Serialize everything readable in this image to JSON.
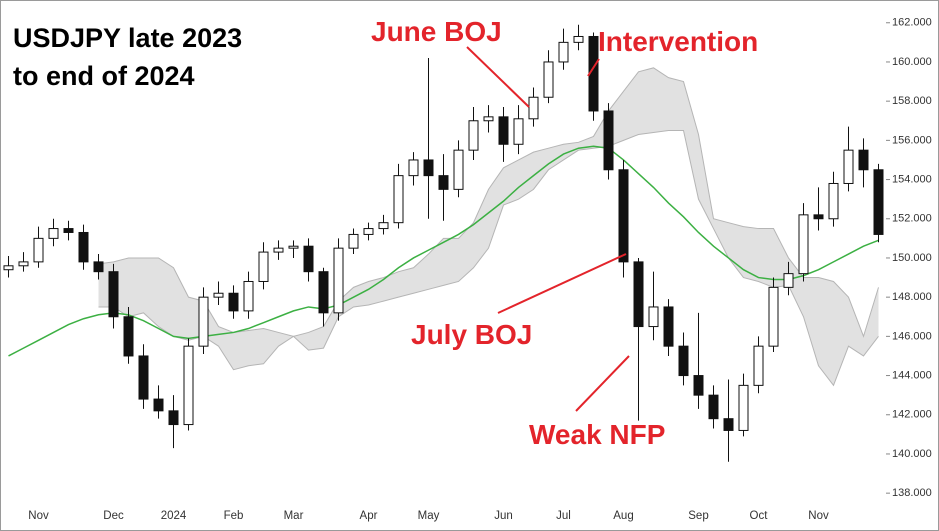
{
  "chart_data": {
    "type": "candlestick",
    "title": "USDJPY late 2023\nto end of 2024",
    "categories": [
      null,
      null,
      "Nov",
      null,
      null,
      null,
      null,
      "Dec",
      null,
      null,
      null,
      "2024",
      null,
      null,
      null,
      "Feb",
      null,
      null,
      null,
      "Mar",
      null,
      null,
      null,
      null,
      "Apr",
      null,
      null,
      null,
      "May",
      null,
      null,
      null,
      null,
      "Jun",
      null,
      null,
      null,
      "Jul",
      null,
      null,
      null,
      "Aug",
      null,
      null,
      null,
      null,
      "Sep",
      null,
      null,
      null,
      "Oct",
      null,
      null,
      null,
      "Nov",
      null,
      null,
      null,
      null
    ],
    "ohlc": {
      "open": [
        149.4,
        149.6,
        149.8,
        151.0,
        151.5,
        151.3,
        149.8,
        149.3,
        147.0,
        145.0,
        142.8,
        142.2,
        141.5,
        145.5,
        148.0,
        148.2,
        147.3,
        148.8,
        150.3,
        150.5,
        150.6,
        149.3,
        147.2,
        150.5,
        151.2,
        151.5,
        151.8,
        154.2,
        155.0,
        154.2,
        153.5,
        155.5,
        157.0,
        157.2,
        155.8,
        157.1,
        158.2,
        160.0,
        161.0,
        161.3,
        157.5,
        154.5,
        149.8,
        146.5,
        147.5,
        145.5,
        144.0,
        143.0,
        141.8,
        141.2,
        143.5,
        145.5,
        148.5,
        149.2,
        152.2,
        152.0,
        153.8,
        155.5,
        154.5
      ],
      "high": [
        150.1,
        150.3,
        151.6,
        152.0,
        151.9,
        151.7,
        150.2,
        149.7,
        147.5,
        145.6,
        143.5,
        143.0,
        145.9,
        148.5,
        148.8,
        148.6,
        149.3,
        150.8,
        150.9,
        150.9,
        151.0,
        149.5,
        151.0,
        151.5,
        151.8,
        152.2,
        154.8,
        155.4,
        160.2,
        155.3,
        156.0,
        157.7,
        157.8,
        157.7,
        157.8,
        158.7,
        160.6,
        161.7,
        161.9,
        161.5,
        157.9,
        155.0,
        150.0,
        149.3,
        147.9,
        146.2,
        147.2,
        143.5,
        143.8,
        144.1,
        146.0,
        149.0,
        149.8,
        152.8,
        153.6,
        154.4,
        156.7,
        156.1,
        154.8
      ],
      "low": [
        149.0,
        149.3,
        149.5,
        150.6,
        150.9,
        149.4,
        148.9,
        146.4,
        144.6,
        142.3,
        141.8,
        140.3,
        141.2,
        145.1,
        147.6,
        146.9,
        146.9,
        148.4,
        149.9,
        150.0,
        148.8,
        146.5,
        146.8,
        150.2,
        150.9,
        151.2,
        151.5,
        153.7,
        152.0,
        151.9,
        153.1,
        155.0,
        156.4,
        154.9,
        155.3,
        156.7,
        157.9,
        159.6,
        160.6,
        157.0,
        154.0,
        149.0,
        141.7,
        145.8,
        145.0,
        143.5,
        142.3,
        141.3,
        139.6,
        140.9,
        143.1,
        145.2,
        148.1,
        148.8,
        151.4,
        151.6,
        153.4,
        153.6,
        150.8
      ],
      "close": [
        149.6,
        149.8,
        151.0,
        151.5,
        151.3,
        149.8,
        149.3,
        147.0,
        145.0,
        142.8,
        142.2,
        141.5,
        145.5,
        148.0,
        148.2,
        147.3,
        148.8,
        150.3,
        150.5,
        150.6,
        149.3,
        147.2,
        150.5,
        151.2,
        151.5,
        151.8,
        154.2,
        155.0,
        154.2,
        153.5,
        155.5,
        157.0,
        157.2,
        155.8,
        157.1,
        158.2,
        160.0,
        161.0,
        161.3,
        157.5,
        154.5,
        149.8,
        146.5,
        147.5,
        145.5,
        144.0,
        143.0,
        141.8,
        141.2,
        143.5,
        145.5,
        148.5,
        149.2,
        152.2,
        152.0,
        153.8,
        155.5,
        154.5,
        151.2
      ],
      "up_color": "#ffffff",
      "down_color": "#111111",
      "edge_color": "#111111"
    },
    "ma": {
      "color": "#3cb043",
      "values": [
        145.0,
        145.4,
        145.8,
        146.2,
        146.6,
        146.9,
        147.1,
        147.2,
        147.1,
        146.8,
        146.4,
        146.0,
        145.9,
        146.0,
        146.1,
        146.2,
        146.4,
        146.7,
        147.0,
        147.3,
        147.5,
        147.4,
        147.6,
        148.0,
        148.4,
        148.9,
        149.5,
        150.0,
        150.4,
        150.8,
        151.2,
        151.7,
        152.3,
        152.9,
        153.6,
        154.2,
        154.8,
        155.3,
        155.6,
        155.7,
        155.6,
        155.0,
        154.3,
        153.6,
        152.8,
        152.1,
        151.3,
        150.6,
        150.0,
        149.4,
        149.0,
        148.9,
        148.9,
        149.1,
        149.4,
        149.8,
        150.2,
        150.6,
        150.9
      ]
    },
    "cloud": {
      "color": "#d9d9d9",
      "edge_color": "#b5b5b5",
      "span_a": [
        null,
        null,
        null,
        null,
        null,
        null,
        149.7,
        149.8,
        150.0,
        150.0,
        150.0,
        149.5,
        148.0,
        147.8,
        146.5,
        146.2,
        146.3,
        146.4,
        146.2,
        146.0,
        146.2,
        146.5,
        147.8,
        148.5,
        148.8,
        149.0,
        149.3,
        149.5,
        150.2,
        151.0,
        151.0,
        151.8,
        153.5,
        154.6,
        155.0,
        155.4,
        155.6,
        155.8,
        155.9,
        156.2,
        157.5,
        158.5,
        159.5,
        159.7,
        159.2,
        159.0,
        156.3,
        152.0,
        151.8,
        151.6,
        151.5,
        151.5,
        150.0,
        149.0,
        149.0,
        148.8,
        148.0,
        146.0,
        148.5
      ],
      "span_b": [
        null,
        null,
        null,
        null,
        null,
        null,
        147.5,
        147.5,
        147.0,
        147.2,
        146.5,
        146.0,
        145.8,
        146.0,
        145.5,
        144.3,
        144.5,
        144.6,
        145.5,
        146.0,
        145.3,
        145.4,
        147.0,
        147.5,
        147.6,
        147.8,
        148.0,
        148.2,
        148.4,
        148.6,
        148.8,
        149.5,
        150.5,
        152.7,
        153.0,
        153.5,
        154.5,
        155.0,
        155.5,
        155.6,
        155.7,
        156.0,
        156.3,
        156.4,
        156.5,
        156.5,
        153.0,
        151.5,
        150.0,
        149.0,
        148.8,
        148.5,
        148.6,
        147.0,
        144.5,
        143.5,
        145.5,
        145.0,
        146.0
      ]
    },
    "ylim": [
      137.6,
      162.6
    ],
    "yticks": [
      {
        "value": 138,
        "label": "138.000"
      },
      {
        "value": 140,
        "label": "140.000"
      },
      {
        "value": 142,
        "label": "142.000"
      },
      {
        "value": 144,
        "label": "144.000"
      },
      {
        "value": 146,
        "label": "146.000"
      },
      {
        "value": 148,
        "label": "148.000"
      },
      {
        "value": 150,
        "label": "150.000"
      },
      {
        "value": 152,
        "label": "152.000"
      },
      {
        "value": 154,
        "label": "154.000"
      },
      {
        "value": 156,
        "label": "156.000"
      },
      {
        "value": 158,
        "label": "158.000"
      },
      {
        "value": 160,
        "label": "160.000"
      },
      {
        "value": 162,
        "label": "162.000"
      }
    ],
    "annotations": [
      "June BOJ",
      "Intervention",
      "July BOJ",
      "Weak NFP"
    ]
  }
}
